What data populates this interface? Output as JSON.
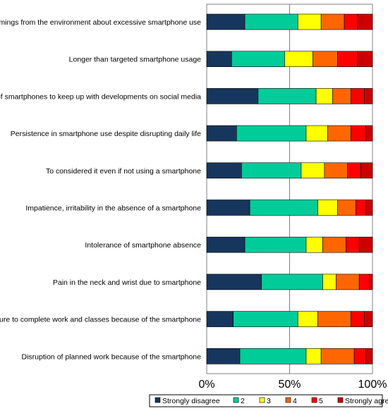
{
  "chart_data": {
    "type": "bar",
    "orientation": "horizontal",
    "stacked": true,
    "normalized_percent": true,
    "categories": [
      "Wamings from the environment about excessive smartphone use",
      "Longer than targeted smartphone usage",
      "Use of smartphones to keep up with developments on social media",
      "Persistence in smartphone use despite disrupting daily life",
      "To considered it even if not using a smartphone",
      "Impatience, irritability in the absence of a smartphone",
      "Intolerance of smartphone absence",
      "Pain in the neck and wrist due to smartphone",
      "Failure to complete work and classes because of the smartphone",
      "Disruption of planned work because of the smartphone"
    ],
    "series": [
      {
        "name": "Strongly disagree",
        "color": "#17365D",
        "values": [
          23,
          15,
          31,
          18,
          21,
          26,
          23,
          33,
          16,
          20
        ]
      },
      {
        "name": "2",
        "color": "#00CC99",
        "values": [
          32,
          32,
          35,
          42,
          36,
          41,
          37,
          37,
          39,
          40
        ]
      },
      {
        "name": "3",
        "color": "#FFFF00",
        "values": [
          14,
          17,
          10,
          13,
          14,
          12,
          10,
          8,
          12,
          9
        ]
      },
      {
        "name": "4",
        "color": "#FF6600",
        "values": [
          14,
          15,
          11,
          14,
          14,
          11,
          14,
          14,
          20,
          20
        ]
      },
      {
        "name": "5",
        "color": "#FF0000",
        "values": [
          8,
          12,
          8,
          9,
          8,
          6,
          8,
          6,
          8,
          7
        ]
      },
      {
        "name": "Strongly agree",
        "color": "#CC0000",
        "values": [
          9,
          9,
          5,
          4,
          7,
          4,
          8,
          2,
          5,
          4
        ]
      }
    ],
    "x_ticks": [
      "0%",
      "50%",
      "100%"
    ],
    "xlim": [
      0,
      100
    ],
    "gridline_at": 50,
    "legend_position": "bottom",
    "title": "",
    "xlabel": "",
    "ylabel": ""
  }
}
